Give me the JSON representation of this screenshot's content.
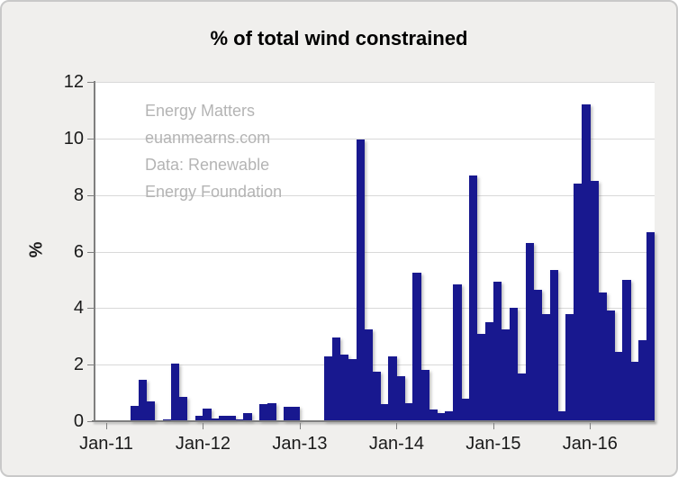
{
  "title": "% of total wind constrained",
  "watermark": {
    "line1": "Energy Matters",
    "line2": "euanmearns.com",
    "line3": "Data: Renewable",
    "line4": "Energy Foundation"
  },
  "y_axis": {
    "label": "%",
    "ticks": [
      0,
      2,
      4,
      6,
      8,
      10,
      12
    ]
  },
  "x_axis": {
    "tick_labels": [
      "Jan-11",
      "Jan-12",
      "Jan-13",
      "Jan-14",
      "Jan-15",
      "Jan-16"
    ]
  },
  "colors": {
    "bar": "#18188f",
    "grid": "#d9d9d9",
    "axis": "#7f7f7f",
    "watermark": "#b4b4b4",
    "background": "#f0efed",
    "plot_background": "#ffffff",
    "text": "#1a1a1a"
  },
  "chart_data": {
    "type": "bar",
    "title": "% of total wind constrained",
    "xlabel": "",
    "ylabel": "%",
    "ylim": [
      0,
      12
    ],
    "grid": true,
    "legend": false,
    "categories": [
      "Jan-11",
      "Feb-11",
      "Mar-11",
      "Apr-11",
      "May-11",
      "Jun-11",
      "Jul-11",
      "Aug-11",
      "Sep-11",
      "Oct-11",
      "Nov-11",
      "Dec-11",
      "Jan-12",
      "Feb-12",
      "Mar-12",
      "Apr-12",
      "May-12",
      "Jun-12",
      "Jul-12",
      "Aug-12",
      "Sep-12",
      "Oct-12",
      "Nov-12",
      "Dec-12",
      "Jan-13",
      "Feb-13",
      "Mar-13",
      "Apr-13",
      "May-13",
      "Jun-13",
      "Jul-13",
      "Aug-13",
      "Sep-13",
      "Oct-13",
      "Nov-13",
      "Dec-13",
      "Jan-14",
      "Feb-14",
      "Mar-14",
      "Apr-14",
      "May-14",
      "Jun-14",
      "Jul-14",
      "Aug-14",
      "Sep-14",
      "Oct-14",
      "Nov-14",
      "Dec-14",
      "Jan-15",
      "Feb-15",
      "Mar-15",
      "Apr-15",
      "May-15",
      "Jun-15",
      "Jul-15",
      "Aug-15",
      "Sep-15",
      "Oct-15",
      "Nov-15",
      "Dec-15",
      "Jan-16",
      "Feb-16",
      "Mar-16",
      "Apr-16",
      "May-16",
      "Jun-16",
      "Jul-16",
      "Aug-16"
    ],
    "values": [
      0,
      0,
      0,
      0.55,
      1.45,
      0.7,
      0,
      0.07,
      2.05,
      0.85,
      0,
      0.2,
      0.45,
      0.1,
      0.2,
      0.2,
      0.05,
      0.3,
      0,
      0.6,
      0.65,
      0,
      0.5,
      0.5,
      0,
      0,
      0,
      2.3,
      2.95,
      2.35,
      2.2,
      9.95,
      3.25,
      1.75,
      0.6,
      2.3,
      1.6,
      0.65,
      5.25,
      1.8,
      0.4,
      0.3,
      0.35,
      4.85,
      0.8,
      8.7,
      3.1,
      3.5,
      4.95,
      3.25,
      4.0,
      1.7,
      6.3,
      4.65,
      3.8,
      5.35,
      0.35,
      3.8,
      8.4,
      11.2,
      8.5,
      4.55,
      3.9,
      2.45,
      5.0,
      2.1,
      2.85,
      6.7
    ],
    "x_tick_month_indices": [
      0,
      12,
      24,
      36,
      48,
      60
    ],
    "x_tick_labels": [
      "Jan-11",
      "Jan-12",
      "Jan-13",
      "Jan-14",
      "Jan-15",
      "Jan-16"
    ]
  }
}
